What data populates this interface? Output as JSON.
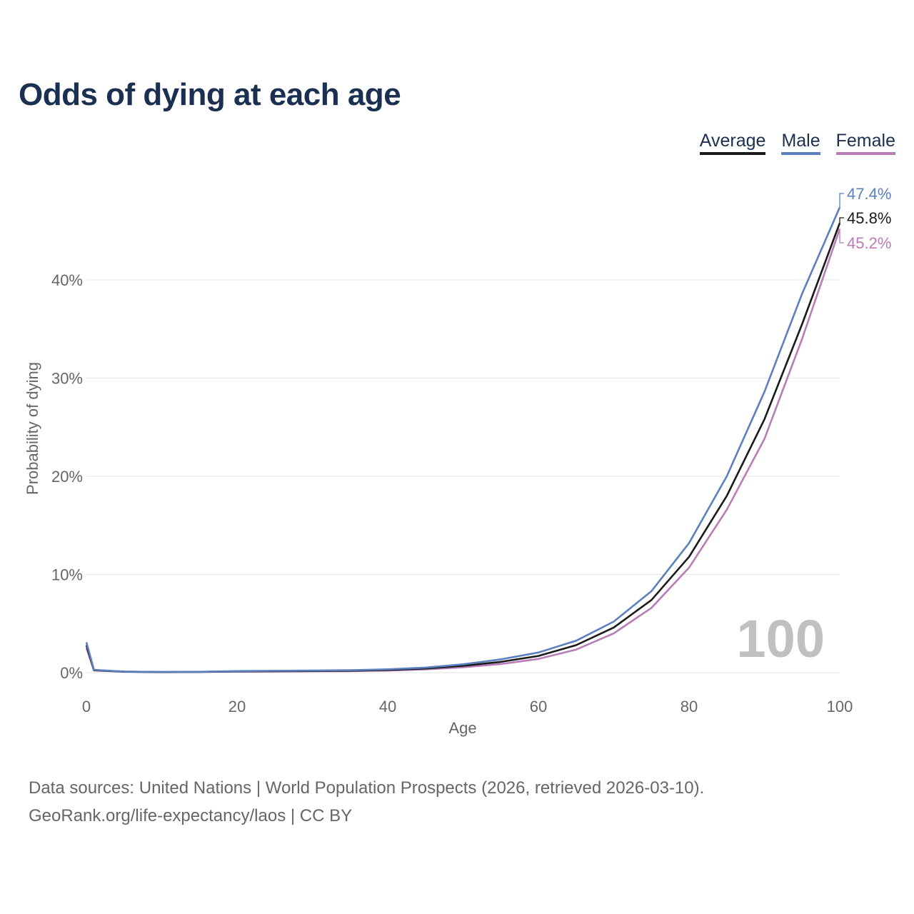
{
  "chart_data": {
    "type": "line",
    "title": "Odds of dying at each age",
    "xlabel": "Age",
    "ylabel": "Probability of dying",
    "xlim": [
      0,
      100
    ],
    "ylim": [
      0,
      48
    ],
    "x_ticks": [
      0,
      20,
      40,
      60,
      80,
      100
    ],
    "x_tick_labels": [
      "0",
      "20",
      "40",
      "60",
      "80",
      "100"
    ],
    "y_ticks": [
      0,
      10,
      20,
      30,
      40
    ],
    "y_tick_labels": [
      "0%",
      "10%",
      "20%",
      "30%",
      "40%"
    ],
    "grid": true,
    "legend_position": "top-right",
    "watermark": "100",
    "x": [
      0,
      1,
      5,
      10,
      15,
      20,
      25,
      30,
      35,
      40,
      45,
      50,
      55,
      60,
      65,
      70,
      75,
      80,
      85,
      90,
      95,
      100
    ],
    "series": [
      {
        "name": "Average",
        "color": "#1a1a1a",
        "end_label": "45.8%",
        "values": [
          2.8,
          0.25,
          0.1,
          0.06,
          0.08,
          0.13,
          0.15,
          0.17,
          0.2,
          0.27,
          0.42,
          0.7,
          1.1,
          1.7,
          2.8,
          4.6,
          7.4,
          11.8,
          18.0,
          25.8,
          35.5,
          45.8
        ]
      },
      {
        "name": "Male",
        "color": "#5b7fbf",
        "end_label": "47.4%",
        "values": [
          3.1,
          0.28,
          0.11,
          0.07,
          0.09,
          0.16,
          0.19,
          0.21,
          0.25,
          0.34,
          0.52,
          0.85,
          1.35,
          2.05,
          3.25,
          5.2,
          8.3,
          13.2,
          20.0,
          28.6,
          38.6,
          47.4
        ]
      },
      {
        "name": "Female",
        "color": "#b87db8",
        "end_label": "45.2%",
        "values": [
          2.5,
          0.22,
          0.09,
          0.05,
          0.07,
          0.1,
          0.12,
          0.14,
          0.16,
          0.21,
          0.33,
          0.55,
          0.88,
          1.4,
          2.35,
          4.0,
          6.6,
          10.7,
          16.6,
          23.8,
          34.0,
          45.2
        ]
      }
    ]
  },
  "source": {
    "line1": "Data sources: United Nations | World Population Prospects (2026, retrieved 2026-03-10).",
    "line2": "GeoRank.org/life-expectancy/laos | CC BY"
  }
}
